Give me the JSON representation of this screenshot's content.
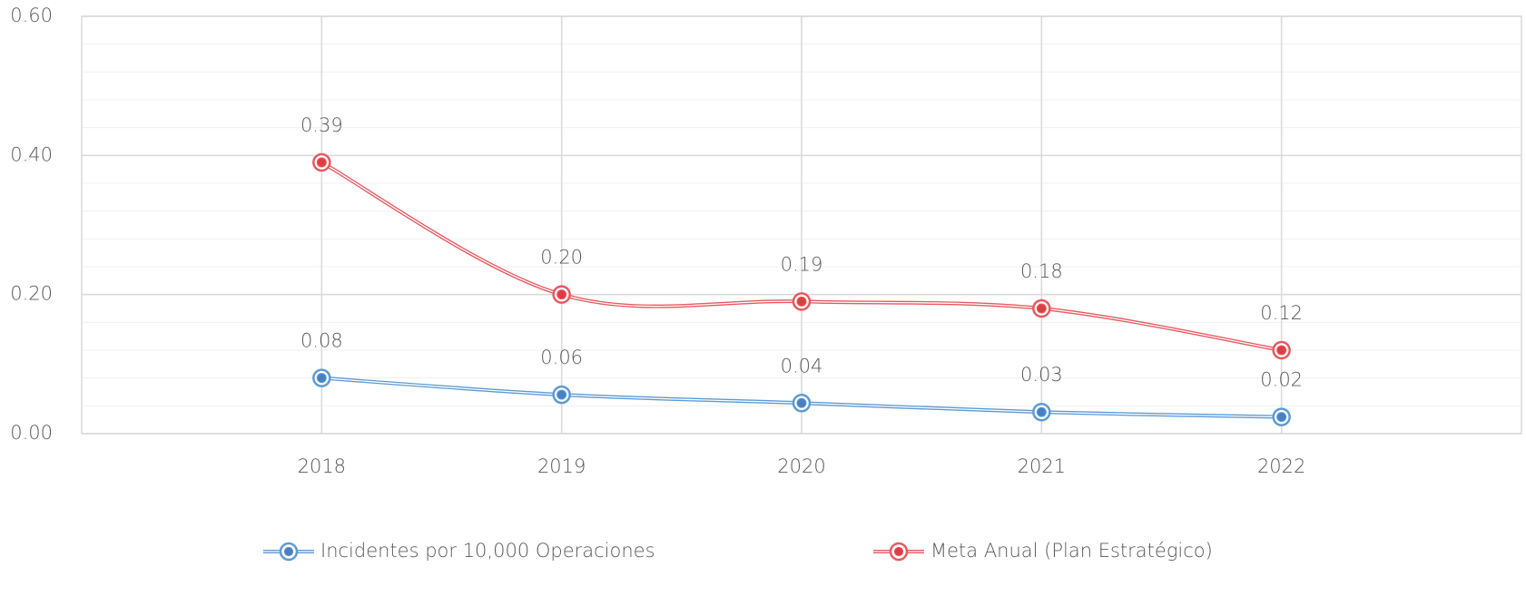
{
  "chart_data": {
    "type": "line",
    "categories": [
      "2018",
      "2019",
      "2020",
      "2021",
      "2022"
    ],
    "series": [
      {
        "name": "Incidentes por 10,000 Operaciones",
        "color": "#5b9bd5",
        "marker_color": "#4a7fc1",
        "values": [
          0.08,
          0.056,
          0.044,
          0.031,
          0.024
        ],
        "value_labels": [
          "0.08",
          "0.06",
          "0.04",
          "0.03",
          "0.02"
        ]
      },
      {
        "name": "Meta Anual (Plan Estratégico)",
        "color": "#e8595f",
        "marker_color": "#e03c44",
        "values": [
          0.39,
          0.2,
          0.19,
          0.18,
          0.12
        ],
        "value_labels": [
          "0.39",
          "0.20",
          "0.19",
          "0.18",
          "0.12"
        ]
      }
    ],
    "ylim": [
      0,
      0.6
    ],
    "yticks": [
      {
        "value": 0,
        "label": "0.00"
      },
      {
        "value": 0.2,
        "label": "0.20"
      },
      {
        "value": 0.4,
        "label": "0.40"
      },
      {
        "value": 0.6,
        "label": "0.60"
      }
    ],
    "minor_yticks": [
      0.04,
      0.08,
      0.12,
      0.16,
      0.24,
      0.28,
      0.32,
      0.36,
      0.44,
      0.48,
      0.52,
      0.56
    ],
    "grid": true,
    "smooth": true,
    "legend": "bottom"
  }
}
